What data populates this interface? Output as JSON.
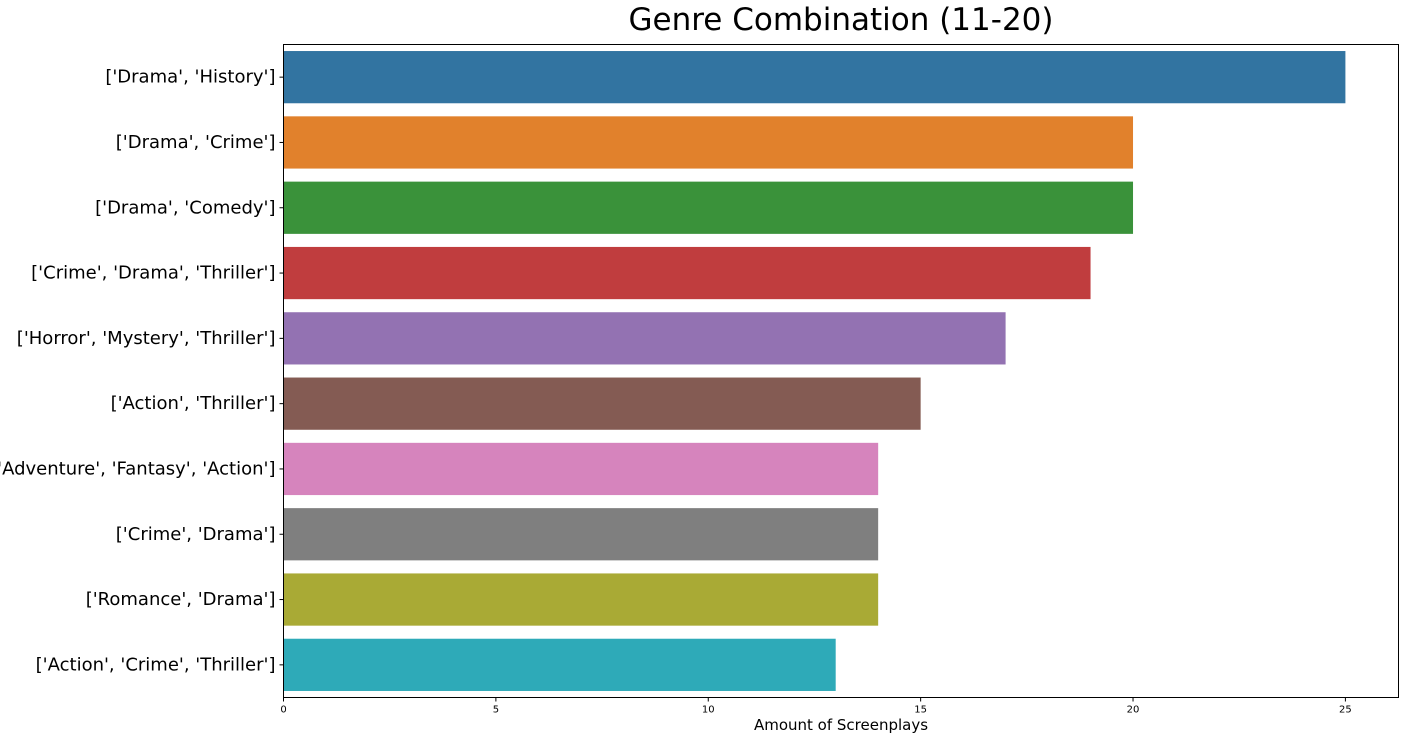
{
  "chart_data": {
    "type": "bar",
    "orientation": "horizontal",
    "title": "Genre Combination (11-20)",
    "xlabel": "Amount of Screenplays",
    "ylabel": "",
    "xlim": [
      0,
      26.25
    ],
    "xticks": [
      0,
      5,
      10,
      15,
      20,
      25
    ],
    "grid": false,
    "categories": [
      "['Drama', 'History']",
      "['Drama', 'Crime']",
      "['Drama', 'Comedy']",
      "['Crime', 'Drama', 'Thriller']",
      "['Horror', 'Mystery', 'Thriller']",
      "['Action', 'Thriller']",
      "['Adventure', 'Fantasy', 'Action']",
      "['Crime', 'Drama']",
      "['Romance', 'Drama']",
      "['Action', 'Crime', 'Thriller']"
    ],
    "values": [
      25,
      20,
      20,
      19,
      17,
      15,
      14,
      14,
      14,
      13
    ],
    "colors": [
      "#3274a1",
      "#e1812c",
      "#3a923a",
      "#c03d3e",
      "#9372b2",
      "#845b53",
      "#d684bd",
      "#7f7f7f",
      "#a9aa35",
      "#2eaab8"
    ]
  }
}
